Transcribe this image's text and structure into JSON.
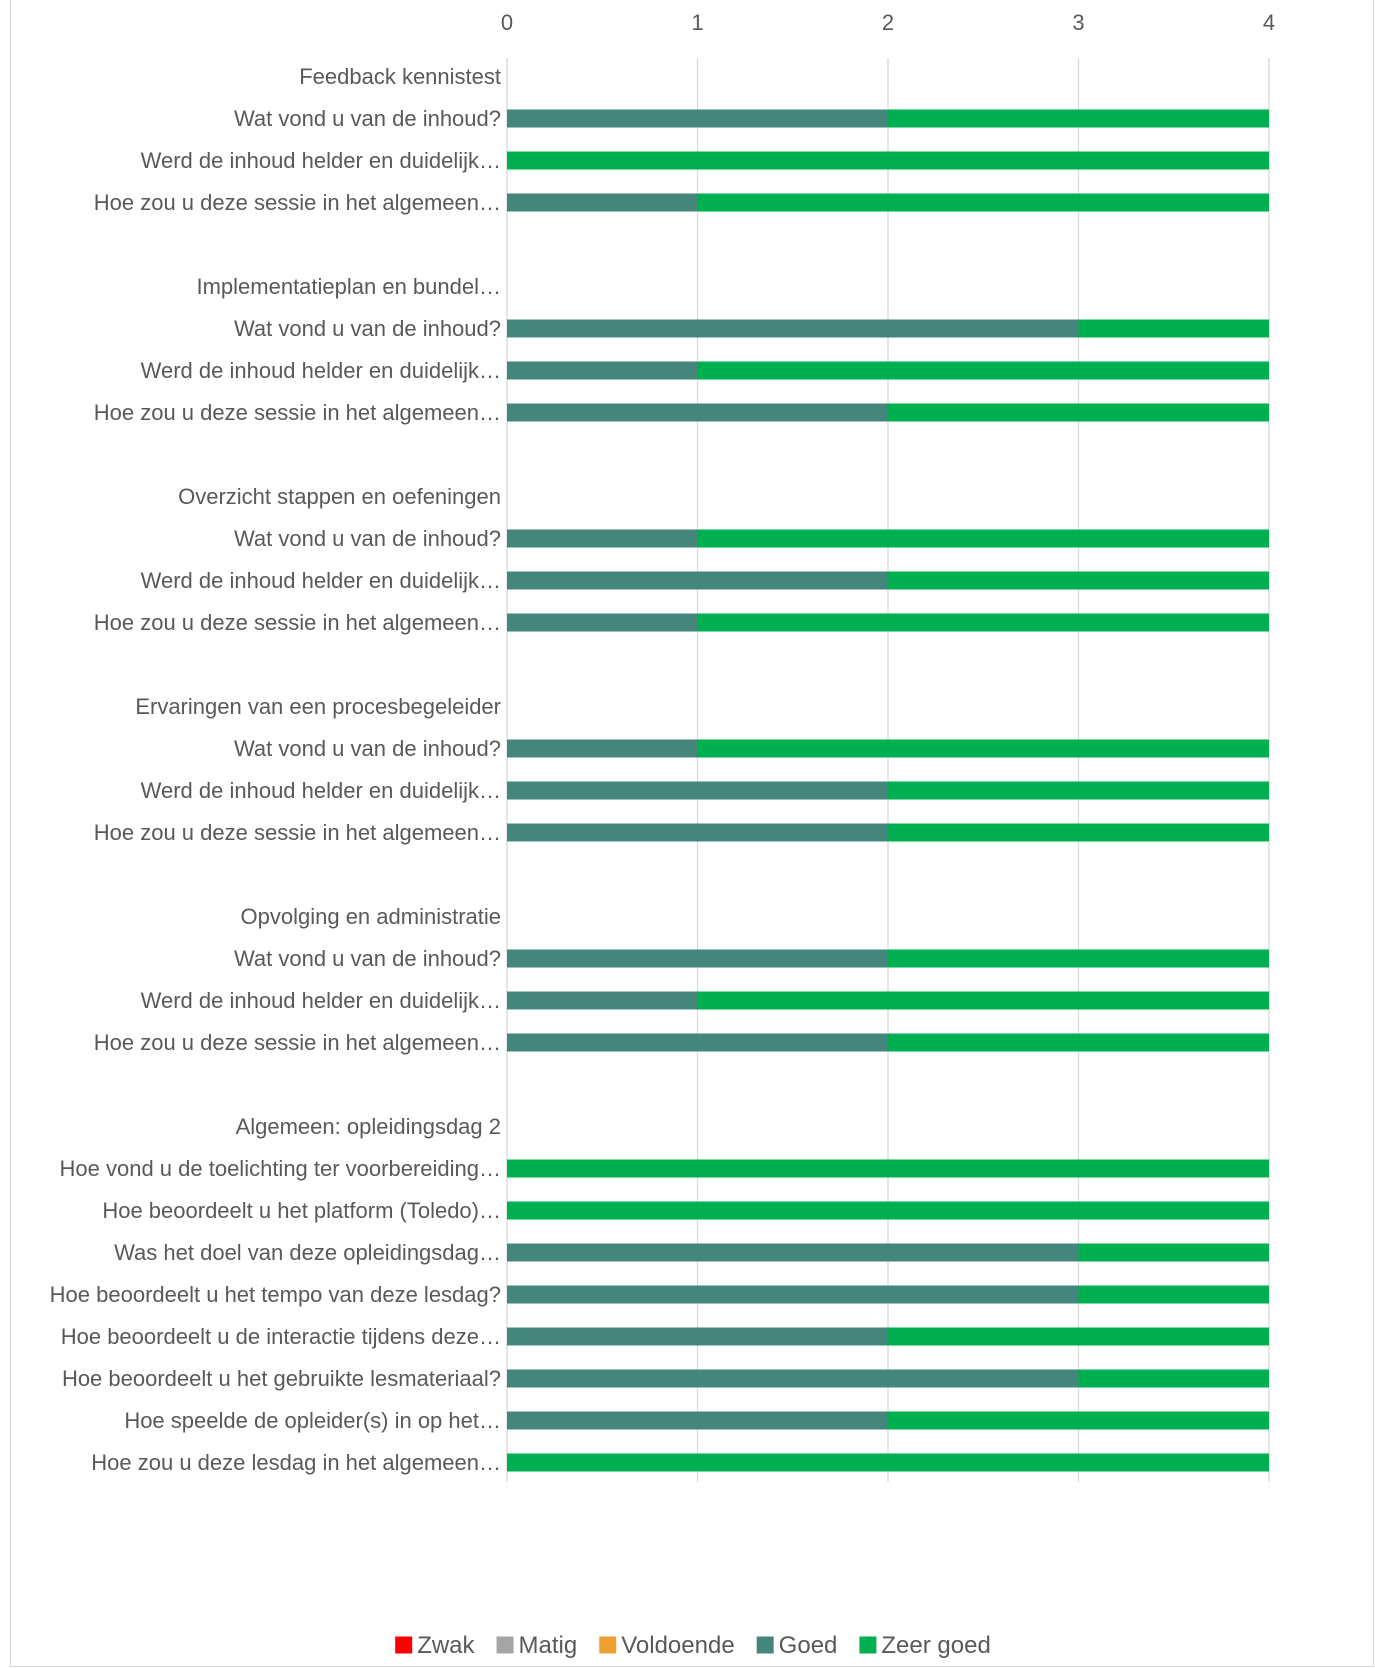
{
  "chart_data": {
    "type": "bar",
    "orientation": "horizontal",
    "stacked": true,
    "xlim": [
      0,
      4
    ],
    "xticks": [
      "0",
      "1",
      "2",
      "3",
      "4"
    ],
    "grid": true,
    "legend_position": "bottom",
    "categories": [
      "Feedback kennistest",
      "Wat vond u van de inhoud?",
      "Werd de inhoud helder en duidelijk…",
      "Hoe zou u deze sessie in het algemeen…",
      "",
      "Implementatieplan en bundel…",
      "Wat vond u van de inhoud?",
      "Werd de inhoud helder en duidelijk…",
      "Hoe zou u deze sessie in het algemeen…",
      "",
      "Overzicht stappen en oefeningen",
      "Wat vond u van de inhoud?",
      "Werd de inhoud helder en duidelijk…",
      "Hoe zou u deze sessie in het algemeen…",
      "",
      "Ervaringen van een procesbegeleider",
      "Wat vond u van de inhoud?",
      "Werd de inhoud helder en duidelijk…",
      "Hoe zou u deze sessie in het algemeen…",
      "",
      "Opvolging en administratie",
      "Wat vond u van de inhoud?",
      "Werd de inhoud helder en duidelijk…",
      "Hoe zou u deze sessie in het algemeen…",
      "",
      "Algemeen: opleidingsdag 2",
      "Hoe vond u de toelichting ter voorbereiding…",
      "Hoe beoordeelt u het platform (Toledo)…",
      "Was het doel van deze opleidingsdag…",
      "Hoe beoordeelt u het tempo van deze lesdag?",
      "Hoe beoordeelt u de interactie tijdens deze…",
      "Hoe beoordeelt u het gebruikte lesmateriaal?",
      "Hoe speelde de opleider(s) in op het…",
      "Hoe zou u deze lesdag in het algemeen…"
    ],
    "series": [
      {
        "name": "Zwak",
        "color": "#ff0000",
        "values": [
          0,
          0,
          0,
          0,
          0,
          0,
          0,
          0,
          0,
          0,
          0,
          0,
          0,
          0,
          0,
          0,
          0,
          0,
          0,
          0,
          0,
          0,
          0,
          0,
          0,
          0,
          0,
          0,
          0,
          0,
          0,
          0,
          0,
          0
        ]
      },
      {
        "name": "Matig",
        "color": "#a5a5a5",
        "values": [
          0,
          0,
          0,
          0,
          0,
          0,
          0,
          0,
          0,
          0,
          0,
          0,
          0,
          0,
          0,
          0,
          0,
          0,
          0,
          0,
          0,
          0,
          0,
          0,
          0,
          0,
          0,
          0,
          0,
          0,
          0,
          0,
          0,
          0
        ]
      },
      {
        "name": "Voldoende",
        "color": "#f0a030",
        "values": [
          0,
          0,
          0,
          0,
          0,
          0,
          0,
          0,
          0,
          0,
          0,
          0,
          0,
          0,
          0,
          0,
          0,
          0,
          0,
          0,
          0,
          0,
          0,
          0,
          0,
          0,
          0,
          0,
          0,
          0,
          0,
          0,
          0,
          0
        ]
      },
      {
        "name": "Goed",
        "color": "#44857c",
        "values": [
          0,
          2,
          0,
          1,
          0,
          0,
          3,
          1,
          2,
          0,
          0,
          1,
          2,
          1,
          0,
          0,
          1,
          2,
          2,
          0,
          0,
          2,
          1,
          2,
          0,
          0,
          0,
          0,
          3,
          3,
          2,
          3,
          2,
          0
        ]
      },
      {
        "name": "Zeer goed",
        "color": "#00b050",
        "values": [
          0,
          2,
          4,
          3,
          0,
          0,
          1,
          3,
          2,
          0,
          0,
          3,
          2,
          3,
          0,
          0,
          3,
          2,
          2,
          0,
          0,
          2,
          3,
          2,
          0,
          0,
          4,
          4,
          1,
          1,
          2,
          1,
          2,
          4
        ]
      }
    ]
  }
}
